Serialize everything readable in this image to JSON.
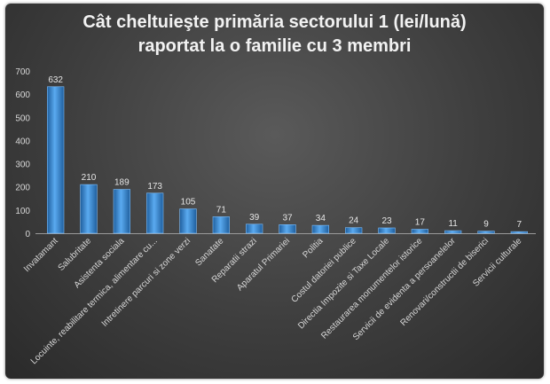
{
  "chart_data": {
    "type": "bar",
    "title_line1": "Cât cheltuieşte primăria sectorului 1 (lei/lună)",
    "title_line2": "raportat la o familie cu 3 membri",
    "categories": [
      "Invatamant",
      "Salubritate",
      "Asistenta sociala",
      "Locuinte, reabilitare termica, alimentare cu...",
      "Intretinere parcuri si zone verzi",
      "Sanatate",
      "Reparatii strazi",
      "Aparatul Primariei",
      "Politia",
      "Costul datoriei publice",
      "Directia Impozite si Taxe Locale",
      "Restaurarea monumentelor istorice",
      "Servicii de evidenta a persoanelelor",
      "Renovari/constructii de biserici",
      "Servicii culturale"
    ],
    "values": [
      632,
      210,
      189,
      173,
      105,
      71,
      39,
      37,
      34,
      24,
      23,
      17,
      11,
      9,
      7
    ],
    "ylim": [
      0,
      700
    ],
    "yticks": [
      0,
      100,
      200,
      300,
      400,
      500,
      600,
      700
    ],
    "grid": false,
    "legend": "none",
    "bar_color": "#3d8fd6"
  }
}
